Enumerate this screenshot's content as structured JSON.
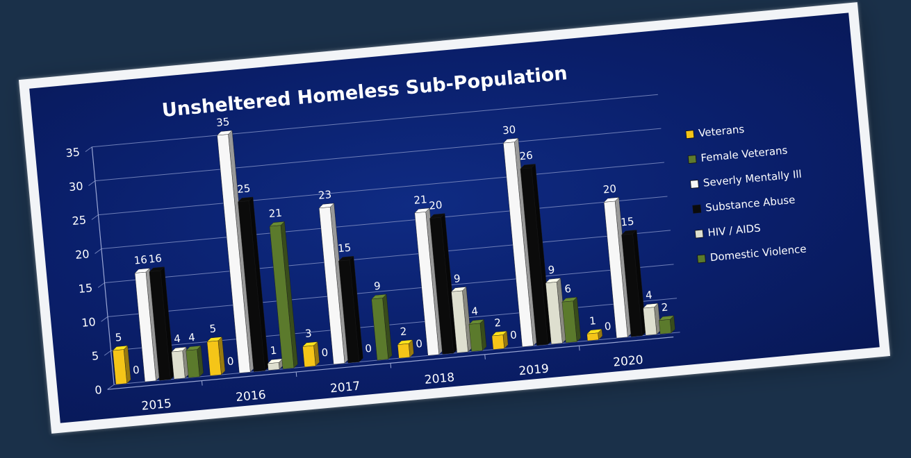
{
  "chart_data": {
    "type": "bar",
    "title": "Unsheltered Homeless Sub-Population",
    "xlabel": "",
    "ylabel": "",
    "ylim": [
      0,
      35
    ],
    "yticks": [
      0,
      5,
      10,
      15,
      20,
      25,
      30,
      35
    ],
    "grid": true,
    "legend_position": "right",
    "categories": [
      "2015",
      "2016",
      "2017",
      "2018",
      "2019",
      "2020"
    ],
    "series": [
      {
        "name": "Veterans",
        "color": "#f5c518",
        "values": [
          5,
          5,
          3,
          2,
          2,
          1
        ]
      },
      {
        "name": "Female Veterans",
        "color": "#5e7a2e",
        "values": [
          0,
          0,
          0,
          0,
          0,
          0
        ]
      },
      {
        "name": "Severly Mentally Ill",
        "color": "#f7f7f7",
        "values": [
          16,
          35,
          23,
          21,
          30,
          20
        ]
      },
      {
        "name": "Substance Abuse",
        "color": "#0b0b0b",
        "values": [
          16,
          25,
          15,
          20,
          26,
          15
        ]
      },
      {
        "name": "HIV / AIDS",
        "color": "#dedfcf",
        "values": [
          4,
          1,
          0,
          9,
          9,
          4
        ]
      },
      {
        "name": "Domestic Violence",
        "color": "#5b7a2c",
        "values": [
          4,
          21,
          9,
          4,
          6,
          2
        ]
      }
    ]
  }
}
